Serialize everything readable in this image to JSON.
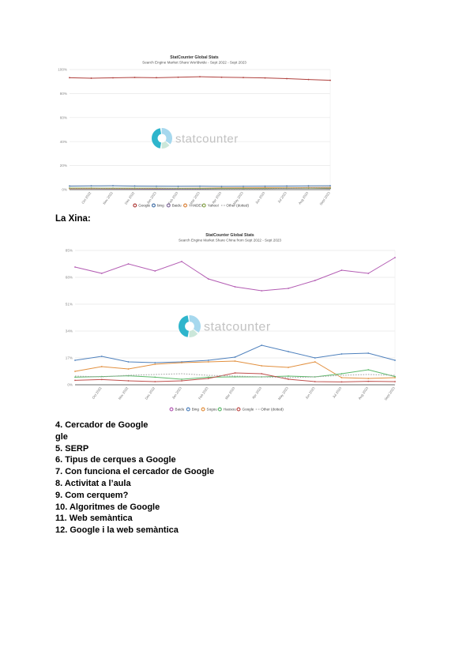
{
  "page": {
    "china_heading": "La Xina:",
    "list_items": [
      "4. Cercador de Google",
      "gle",
      "5. SERP",
      "6. Tipus de cerques a Google",
      "7. Con funciona el cercador de Google",
      "8. Activitat a l’aula",
      "9. Com cerquem?",
      "10. Algoritmes de Google",
      "11. Web semàntica",
      "12. Google i la web semàntica"
    ]
  },
  "watermark": {
    "text": "statcounter",
    "segment_colors": [
      "#2eb5cc",
      "#a6d8ee",
      "#cbe7da"
    ],
    "text_color": "#c2c2c2"
  },
  "chart_data": [
    {
      "type": "line",
      "title": "StatCounter Global Stats",
      "subtitle": "Search Engine Market Share Worldwide - Sept 2022 - Sept 2023",
      "x": [
        "Sept 2022",
        "Oct 2022",
        "Nov 2022",
        "Dec 2022",
        "Jan 2023",
        "Feb 2023",
        "Mar 2023",
        "Apr 2023",
        "May 2023",
        "Jun 2023",
        "Jul 2023",
        "Aug 2023",
        "Sept 2023"
      ],
      "ylim": [
        0,
        100
      ],
      "yticks": [
        0,
        20,
        40,
        60,
        80,
        100
      ],
      "grid": true,
      "legend_position": "bottom",
      "series": [
        {
          "name": "Google",
          "color": "#b0413e",
          "dash": false,
          "values": [
            93.2,
            92.8,
            93.1,
            93.4,
            93.2,
            93.6,
            94.0,
            93.6,
            93.3,
            93.0,
            92.4,
            91.7,
            91.0
          ]
        },
        {
          "name": "bing",
          "color": "#4572a7",
          "dash": false,
          "values": [
            3.0,
            3.1,
            3.2,
            3.0,
            2.9,
            2.8,
            2.9,
            2.7,
            2.8,
            2.9,
            3.0,
            3.1,
            3.2
          ]
        },
        {
          "name": "Baidu",
          "color": "#80699b",
          "dash": false,
          "values": [
            0.8,
            0.8,
            0.7,
            0.6,
            0.5,
            0.6,
            0.4,
            0.9,
            0.9,
            0.9,
            1.1,
            1.2,
            0.9
          ]
        },
        {
          "name": "YANDEX",
          "color": "#db843d",
          "dash": false,
          "values": [
            0.8,
            0.9,
            0.9,
            0.9,
            1.0,
            1.1,
            1.2,
            1.4,
            1.5,
            1.6,
            1.6,
            1.7,
            1.8
          ]
        },
        {
          "name": "Yahoo!",
          "color": "#89a54e",
          "dash": false,
          "values": [
            1.3,
            1.3,
            1.2,
            1.2,
            1.2,
            1.1,
            1.1,
            1.1,
            1.1,
            1.1,
            1.2,
            1.2,
            1.2
          ]
        },
        {
          "name": "Other (dotted)",
          "color": "#9a9a9a",
          "dash": true,
          "values": [
            0.9,
            1.1,
            0.9,
            0.9,
            1.2,
            0.8,
            0.6,
            0.5,
            0.6,
            0.7,
            1.2,
            1.5,
            1.8
          ]
        }
      ]
    },
    {
      "type": "line",
      "title": "StatCounter Global Stats",
      "subtitle": "Search Engine Market Share China from Sept 2022 - Sept 2023",
      "x": [
        "Sept 2022",
        "Oct 2022",
        "Nov 2022",
        "Dec 2022",
        "Jan 2023",
        "Feb 2023",
        "Mar 2023",
        "Apr 2023",
        "May 2023",
        "Jun 2023",
        "Jul 2023",
        "Aug 2023",
        "Sept 2023"
      ],
      "ylim": [
        0,
        85
      ],
      "yticks": [
        0,
        17,
        34,
        51,
        68,
        85
      ],
      "grid": true,
      "legend_position": "bottom",
      "series": [
        {
          "name": "Baidu",
          "color": "#b35cb3",
          "dash": false,
          "values": [
            74.5,
            70.5,
            76.5,
            72.0,
            78.0,
            67.0,
            62.0,
            59.5,
            61.0,
            66.0,
            72.5,
            70.5,
            80.5
          ]
        },
        {
          "name": "Bing",
          "color": "#4f81bd",
          "dash": false,
          "values": [
            15.5,
            18.0,
            14.5,
            14.0,
            14.5,
            15.5,
            17.5,
            25.0,
            21.0,
            17.0,
            19.5,
            20.0,
            15.5
          ]
        },
        {
          "name": "Sogou",
          "color": "#e2903f",
          "dash": false,
          "values": [
            8.5,
            11.5,
            10.0,
            13.0,
            14.0,
            14.5,
            15.0,
            12.0,
            11.0,
            14.5,
            4.5,
            4.0,
            4.5
          ]
        },
        {
          "name": "Haosou",
          "color": "#5dba6b",
          "dash": false,
          "values": [
            4.8,
            5.2,
            5.7,
            4.8,
            3.5,
            4.8,
            5.0,
            5.0,
            5.5,
            5.0,
            7.0,
            9.5,
            5.2
          ]
        },
        {
          "name": "Google",
          "color": "#c0504d",
          "dash": false,
          "values": [
            2.8,
            3.3,
            2.5,
            2.0,
            2.5,
            4.0,
            7.5,
            7.0,
            3.5,
            2.0,
            1.8,
            2.2,
            2.0
          ]
        },
        {
          "name": "Other (dotted)",
          "color": "#a0a0a0",
          "dash": true,
          "values": [
            5.5,
            5.0,
            6.0,
            6.5,
            7.0,
            6.0,
            5.5,
            5.0,
            4.5,
            5.0,
            6.0,
            6.5,
            6.0
          ]
        }
      ]
    }
  ]
}
